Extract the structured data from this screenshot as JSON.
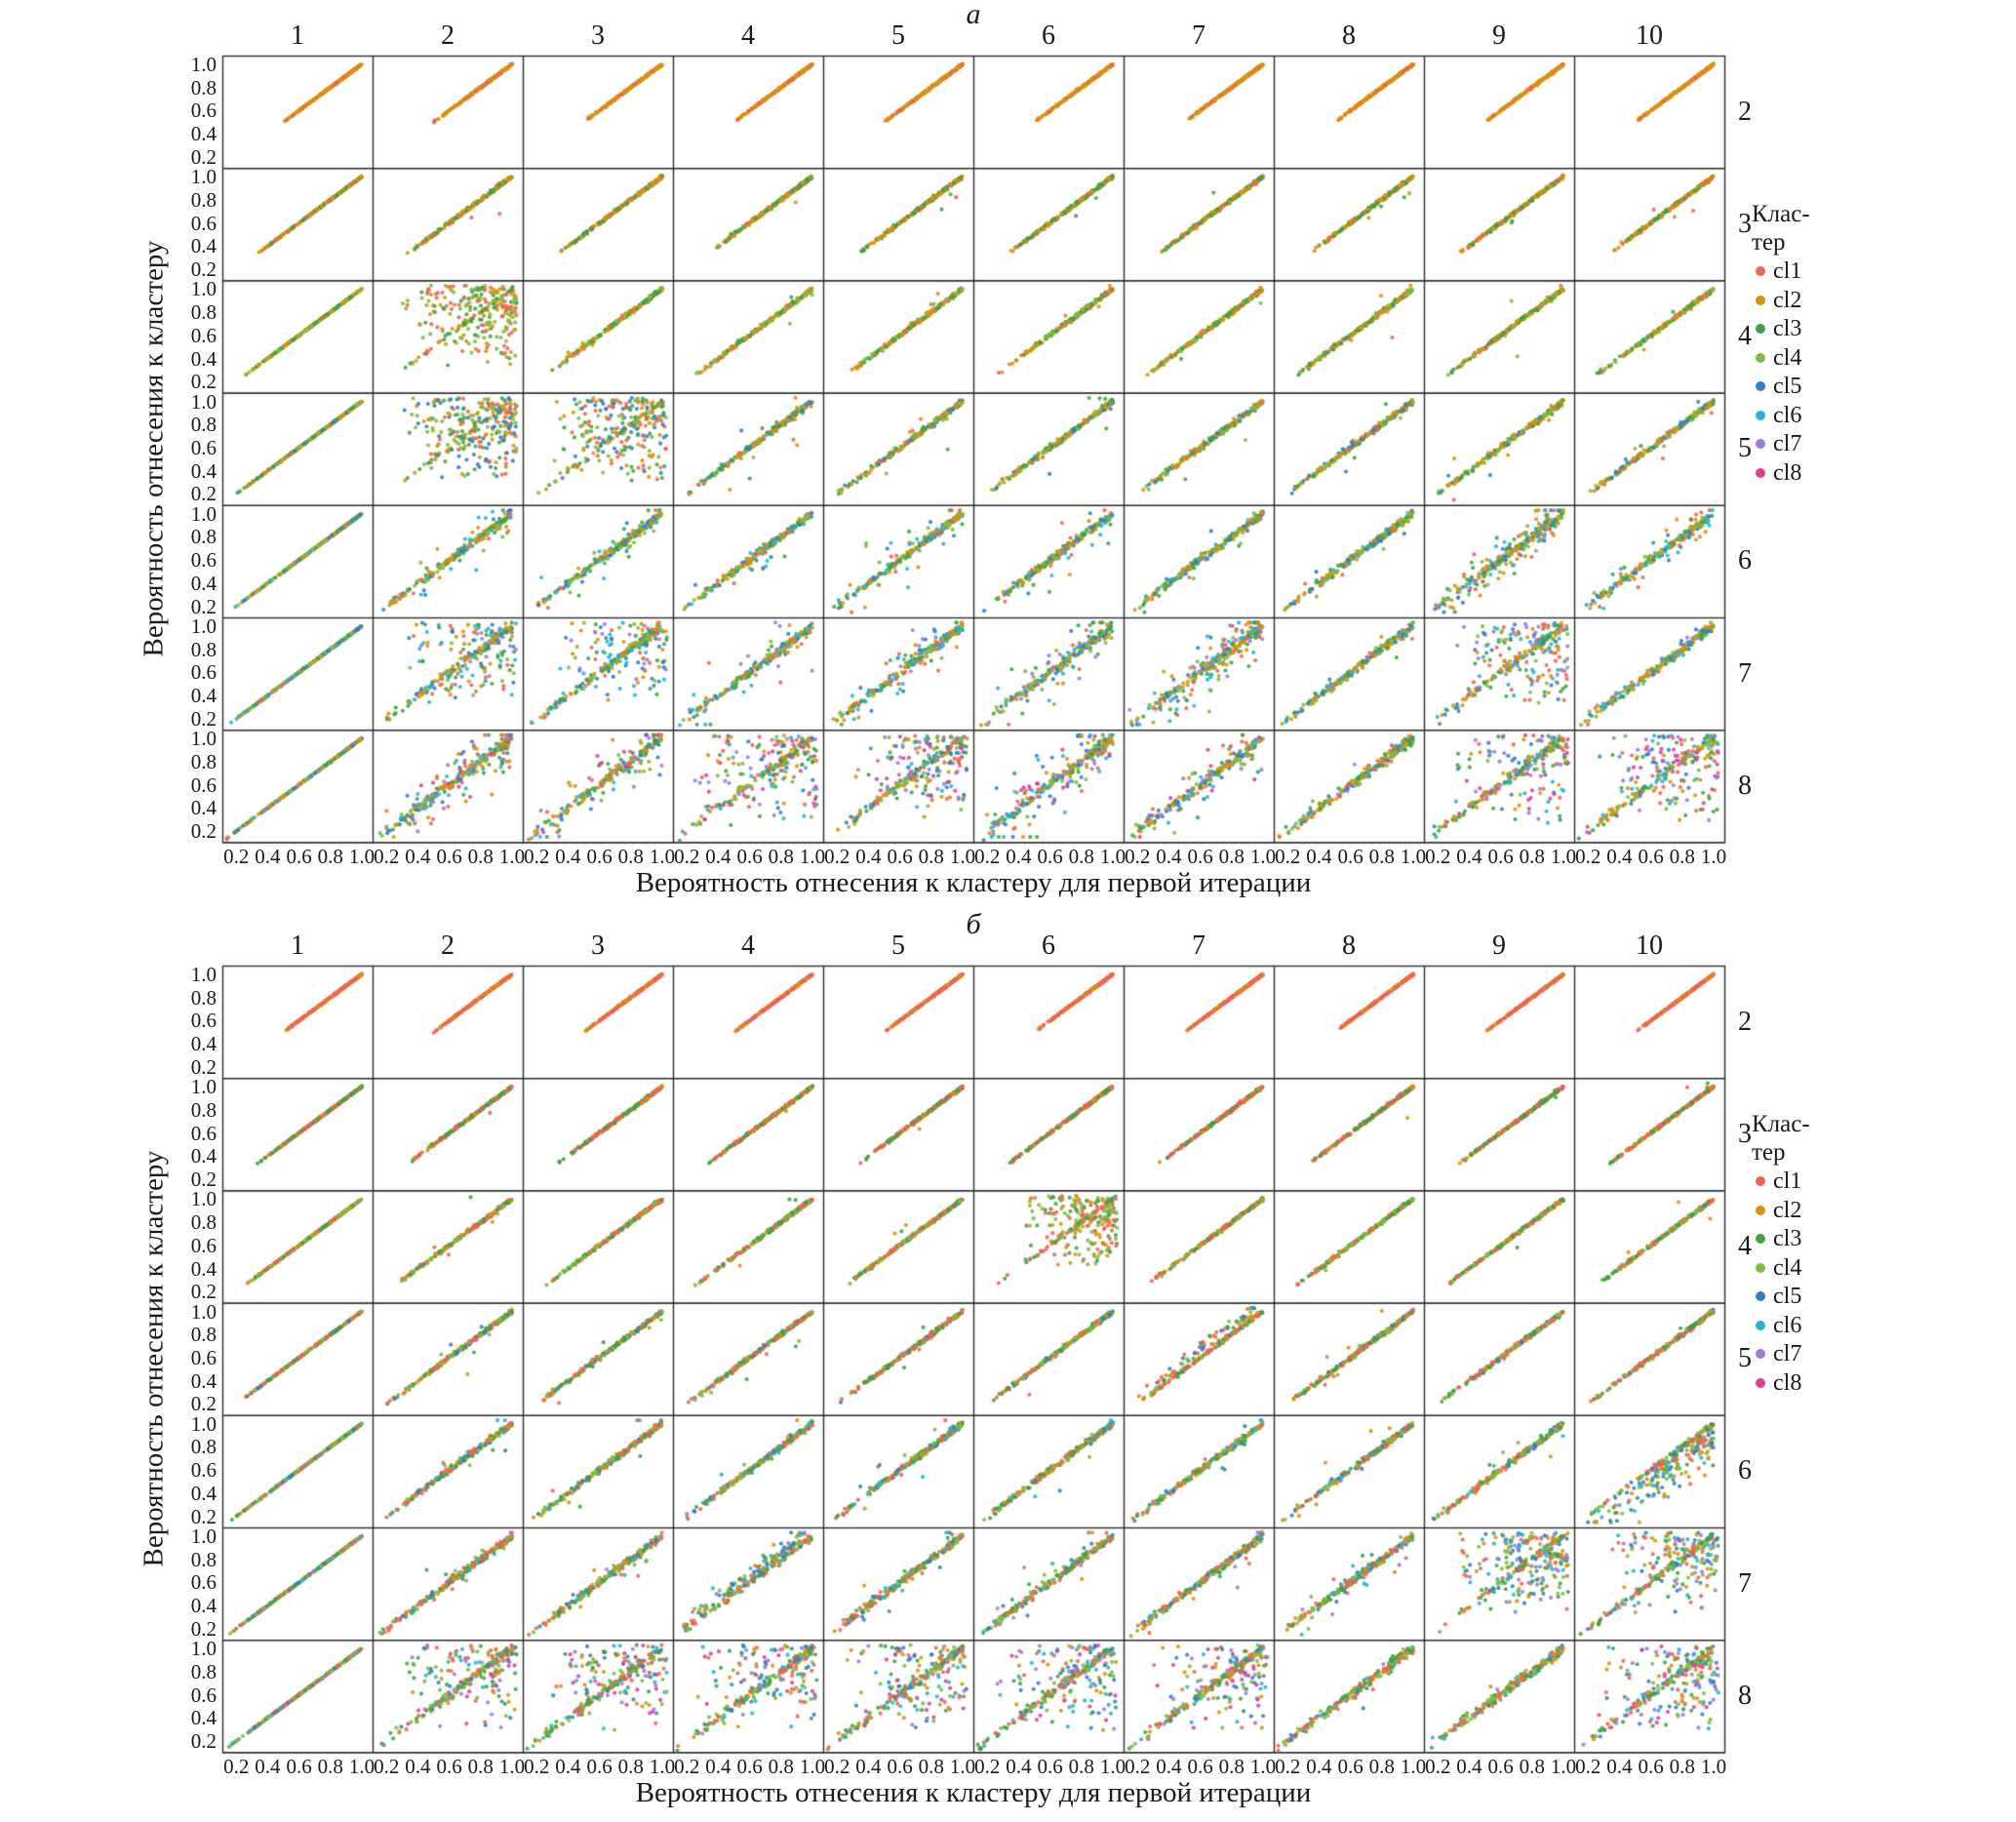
{
  "figure": {
    "background": "#ffffff",
    "text_color": "#1a1a1a",
    "grid_line_color": "#2a2a2a"
  },
  "chart_data": [
    {
      "type": "scatter",
      "layout": "facet_grid",
      "title": "а",
      "columns": [
        "1",
        "2",
        "3",
        "4",
        "5",
        "6",
        "7",
        "8",
        "9",
        "10"
      ],
      "rows": [
        "2",
        "3",
        "4",
        "5",
        "6",
        "7",
        "8"
      ],
      "column_meaning": "iteration number (top header)",
      "row_meaning": "number of clusters (right header)",
      "x_tick_labels": [
        "0.2",
        "0.4",
        "0.6",
        "0.8",
        "1.0"
      ],
      "y_tick_labels": [
        "1.0",
        "0.8",
        "0.6",
        "0.4",
        "0.2"
      ],
      "xlim": [
        0.13,
        1.05
      ],
      "ylim": [
        0.13,
        1.05
      ],
      "xlabel": "Вероятность отнесения к кластеру для первой итерации",
      "ylabel": "Вероятность отнесения к кластеру",
      "legend_title_lines": [
        "Клас-",
        "тер"
      ],
      "legend_position": "right",
      "series": [
        {
          "name": "cl1",
          "color": "#ef6351"
        },
        {
          "name": "cl2",
          "color": "#d8920e"
        },
        {
          "name": "cl3",
          "color": "#3da345"
        },
        {
          "name": "cl4",
          "color": "#7fbc41"
        },
        {
          "name": "cl5",
          "color": "#2f7fc6"
        },
        {
          "name": "cl6",
          "color": "#27b2d4"
        },
        {
          "name": "cl7",
          "color": "#9d7bd8"
        },
        {
          "name": "cl8",
          "color": "#dd3f9b"
        }
      ],
      "pattern": {
        "description": "Each facet plots cluster-membership probability at iteration N (column) vs the first iteration, for k clusters (row label). Points lie on the diagonal y=x from 1/k to 1.0; listed facets show broad scatter clouds.",
        "seed": 101,
        "points_per_facet": 230,
        "diagonal_color_weights": [
          0.06,
          0.26,
          0.2,
          0.18,
          0.12,
          0.1,
          0.04,
          0.04
        ],
        "row_noise": [
          0.004,
          0.007,
          0.009,
          0.012,
          0.016,
          0.02,
          0.022
        ],
        "row_scatter_frac": [
          0,
          0.01,
          0.02,
          0.03,
          0.06,
          0.13,
          0.22
        ],
        "noisy_cells": [
          {
            "row": "4",
            "col": 2,
            "frac": 0.8,
            "kind": "cloud",
            "lo": 0.3
          },
          {
            "row": "5",
            "col": 2,
            "frac": 0.85,
            "kind": "cloud",
            "lo": 0.3
          },
          {
            "row": "5",
            "col": 3,
            "frac": 0.8,
            "kind": "cloud",
            "lo": 0.3
          },
          {
            "row": "6",
            "col": 2,
            "frac": 0.22,
            "kind": "band",
            "sd": 0.1
          },
          {
            "row": "6",
            "col": 3,
            "frac": 0.22,
            "kind": "band",
            "sd": 0.1
          },
          {
            "row": "6",
            "col": 5,
            "frac": 0.18,
            "kind": "band",
            "sd": 0.12
          },
          {
            "row": "6",
            "col": 9,
            "frac": 0.5,
            "kind": "band",
            "sd": 0.09
          },
          {
            "row": "6",
            "col": 10,
            "frac": 0.25,
            "kind": "band",
            "sd": 0.08
          },
          {
            "row": "7",
            "col": 2,
            "frac": 0.5,
            "kind": "cloud",
            "lo": 0.3
          },
          {
            "row": "7",
            "col": 3,
            "frac": 0.5,
            "kind": "cloud",
            "lo": 0.3
          },
          {
            "row": "7",
            "col": 5,
            "frac": 0.3,
            "kind": "band",
            "sd": 0.1
          },
          {
            "row": "7",
            "col": 6,
            "frac": 0.35,
            "kind": "band",
            "sd": 0.12
          },
          {
            "row": "7",
            "col": 7,
            "frac": 0.5,
            "kind": "band",
            "sd": 0.13
          },
          {
            "row": "7",
            "col": 8,
            "frac": 0.05,
            "kind": "band",
            "sd": 0.06
          },
          {
            "row": "7",
            "col": 9,
            "frac": 0.55,
            "kind": "cloud",
            "lo": 0.3
          },
          {
            "row": "7",
            "col": 10,
            "frac": 0.07,
            "kind": "band",
            "sd": 0.06
          },
          {
            "row": "8",
            "col": 2,
            "frac": 0.42,
            "kind": "band",
            "sd": 0.14
          },
          {
            "row": "8",
            "col": 3,
            "frac": 0.38,
            "kind": "band",
            "sd": 0.12
          },
          {
            "row": "8",
            "col": 4,
            "frac": 0.6,
            "kind": "cloud",
            "lo": 0.25
          },
          {
            "row": "8",
            "col": 5,
            "frac": 0.55,
            "kind": "cloud",
            "lo": 0.3
          },
          {
            "row": "8",
            "col": 6,
            "frac": 0.45,
            "kind": "band",
            "sd": 0.15
          },
          {
            "row": "8",
            "col": 7,
            "frac": 0.32,
            "kind": "band",
            "sd": 0.1
          },
          {
            "row": "8",
            "col": 8,
            "frac": 0.06,
            "kind": "band",
            "sd": 0.06
          },
          {
            "row": "8",
            "col": 9,
            "frac": 0.5,
            "kind": "cloud",
            "lo": 0.25
          },
          {
            "row": "8",
            "col": 10,
            "frac": 0.6,
            "kind": "cloud",
            "lo": 0.25
          }
        ]
      }
    },
    {
      "type": "scatter",
      "layout": "facet_grid",
      "title": "б",
      "columns": [
        "1",
        "2",
        "3",
        "4",
        "5",
        "6",
        "7",
        "8",
        "9",
        "10"
      ],
      "rows": [
        "2",
        "3",
        "4",
        "5",
        "6",
        "7",
        "8"
      ],
      "column_meaning": "iteration number (top header)",
      "row_meaning": "number of clusters (right header)",
      "x_tick_labels": [
        "0.2",
        "0.4",
        "0.6",
        "0.8",
        "1.0"
      ],
      "y_tick_labels": [
        "1.0",
        "0.8",
        "0.6",
        "0.4",
        "0.2"
      ],
      "xlim": [
        0.13,
        1.05
      ],
      "ylim": [
        0.13,
        1.05
      ],
      "xlabel": "Вероятность отнесения к кластеру для первой итерации",
      "ylabel": "Вероятность отнесения к кластеру",
      "legend_title_lines": [
        "Клас-",
        "тер"
      ],
      "legend_position": "right",
      "series": [
        {
          "name": "cl1",
          "color": "#ef6351"
        },
        {
          "name": "cl2",
          "color": "#d8920e"
        },
        {
          "name": "cl3",
          "color": "#3da345"
        },
        {
          "name": "cl4",
          "color": "#7fbc41"
        },
        {
          "name": "cl5",
          "color": "#2f7fc6"
        },
        {
          "name": "cl6",
          "color": "#27b2d4"
        },
        {
          "name": "cl7",
          "color": "#9d7bd8"
        },
        {
          "name": "cl8",
          "color": "#dd3f9b"
        }
      ],
      "pattern": {
        "description": "Same facet structure as panel a; diagonals are tighter (red/green dominant), with scatter concentrated in row 8 and facets (4,6), (6,10), (7,9), (7,10).",
        "seed": 202,
        "points_per_facet": 230,
        "diagonal_color_weights": [
          0.26,
          0.1,
          0.24,
          0.22,
          0.08,
          0.06,
          0.02,
          0.02
        ],
        "row_noise": [
          0.003,
          0.006,
          0.007,
          0.009,
          0.013,
          0.016,
          0.02
        ],
        "row_scatter_frac": [
          0,
          0.005,
          0.01,
          0.02,
          0.04,
          0.08,
          0.24
        ],
        "noisy_cells": [
          {
            "row": "4",
            "col": 6,
            "frac": 0.75,
            "kind": "cloud",
            "lo": 0.4
          },
          {
            "row": "5",
            "col": 7,
            "frac": 0.3,
            "kind": "band-above",
            "sd": 0.05
          },
          {
            "row": "6",
            "col": 10,
            "frac": 0.5,
            "kind": "band-below",
            "sd": 0.12
          },
          {
            "row": "7",
            "col": 4,
            "frac": 0.4,
            "kind": "band-above",
            "sd": 0.06
          },
          {
            "row": "7",
            "col": 9,
            "frac": 0.75,
            "kind": "cloud",
            "lo": 0.3
          },
          {
            "row": "7",
            "col": 10,
            "frac": 0.6,
            "kind": "cloud",
            "lo": 0.3
          },
          {
            "row": "8",
            "col": 2,
            "frac": 0.5,
            "kind": "cloud",
            "lo": 0.25
          },
          {
            "row": "8",
            "col": 3,
            "frac": 0.5,
            "kind": "cloud",
            "lo": 0.25
          },
          {
            "row": "8",
            "col": 4,
            "frac": 0.5,
            "kind": "cloud",
            "lo": 0.25
          },
          {
            "row": "8",
            "col": 5,
            "frac": 0.5,
            "kind": "cloud",
            "lo": 0.25
          },
          {
            "row": "8",
            "col": 6,
            "frac": 0.5,
            "kind": "cloud",
            "lo": 0.25
          },
          {
            "row": "8",
            "col": 7,
            "frac": 0.5,
            "kind": "cloud",
            "lo": 0.25
          },
          {
            "row": "8",
            "col": 8,
            "frac": 0.07,
            "kind": "band",
            "sd": 0.06
          },
          {
            "row": "8",
            "col": 9,
            "frac": 0.05,
            "kind": "band",
            "sd": 0.05
          },
          {
            "row": "8",
            "col": 10,
            "frac": 0.55,
            "kind": "cloud",
            "lo": 0.25
          }
        ]
      }
    }
  ]
}
